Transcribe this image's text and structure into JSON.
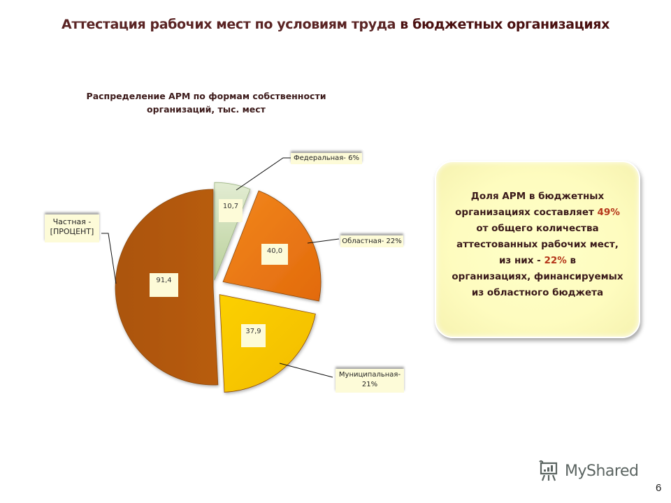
{
  "slide": {
    "title_part1": "Аттестация рабочих мест по условиям труда ",
    "title_part2": "в бюджетных организациях",
    "page_number": "6"
  },
  "chart": {
    "title_line1": "Распределение АРМ по формам собственности",
    "title_line2": "организаций,  тыс. мест"
  },
  "callout": {
    "line1": "Доля АРМ в бюджетных",
    "line2_pre": "организациях  составляет ",
    "line2_hl": "49%",
    "line3": "от общего количества",
    "line4": "аттестованных рабочих мест,",
    "line5_pre": "из них  - ",
    "line5_hl": "22%",
    "line5_post": " в",
    "line6": "организациях,  финансируемых",
    "line7": "из областного бюджета",
    "highlight_color": "#b5361a"
  },
  "watermark": {
    "text": "MyShared",
    "icon": "presentation-board-icon"
  },
  "chart_data": {
    "type": "pie",
    "title": "Распределение АРМ по формам собственности организаций,  тыс. мест",
    "unit": "тыс. мест",
    "categories": [
      "Федеральная",
      "Областная",
      "Муниципальная",
      "Частная"
    ],
    "values": [
      10.7,
      40.0,
      37.9,
      91.4
    ],
    "value_labels": [
      "10,7",
      "40,0",
      "37,9",
      "91,4"
    ],
    "category_labels": [
      "Федеральная- 6%",
      "Областная- 22%",
      "Муниципальная- 21%",
      "Частная - [ПРОЦЕНТ]"
    ],
    "percentages": [
      6,
      22,
      21,
      null
    ],
    "colors": [
      "#c8dcae",
      "#ee7a1a",
      "#f8c800",
      "#b45a0a"
    ],
    "exploded": true,
    "legend": "none"
  }
}
